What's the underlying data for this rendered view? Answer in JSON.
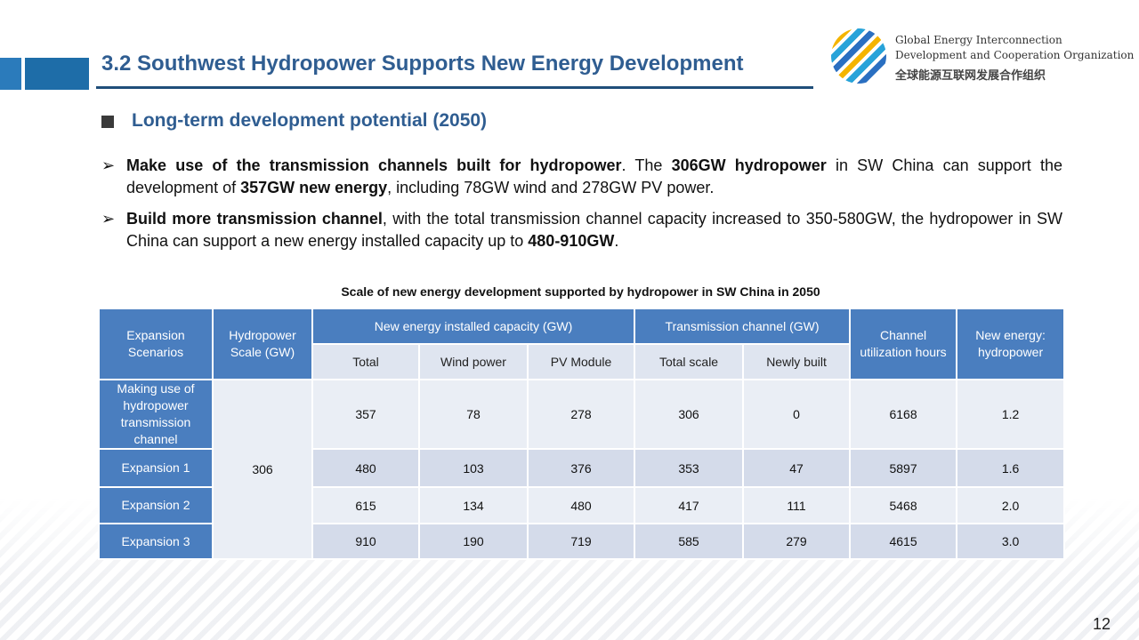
{
  "header": {
    "title": "3.2 Southwest Hydropower Supports New Energy Development",
    "logo": {
      "icon": "globe-logo-icon",
      "en_line1": "Global Energy Interconnection",
      "en_line2": "Development and Cooperation Organization",
      "cn": "全球能源互联网发展合作组织"
    }
  },
  "subtitle": "Long-term development potential (2050)",
  "bullets": [
    {
      "b1": "Make use of the transmission channels built for hydropower",
      "t1": ". The ",
      "b2": "306GW hydropower",
      "t2": " in SW China can support the development of ",
      "b3": "357GW new energy",
      "t3": ", including 78GW wind and 278GW PV power."
    },
    {
      "b1": "Build more transmission channel",
      "t1": ", with the total transmission channel capacity increased to 350-580GW, the hydropower in SW China can support a new energy installed capacity up to ",
      "b2": "480-910GW",
      "t2": "."
    }
  ],
  "table": {
    "caption": "Scale of new energy development supported by hydropower in SW China in 2050",
    "headers": {
      "scenarios": "Expansion Scenarios",
      "hydro_scale": "Hydropower Scale (GW)",
      "new_energy": "New energy installed capacity (GW)",
      "transmission": "Transmission channel (GW)",
      "utilization": "Channel utilization hours",
      "ratio": "New energy: hydropower",
      "total": "Total",
      "wind": "Wind power",
      "pv": "PV Module",
      "total_scale": "Total scale",
      "newly_built": "Newly built"
    },
    "hydro_value": "306",
    "rows": [
      {
        "scenario": "Making use of hydropower transmission channel",
        "total": "357",
        "wind": "78",
        "pv": "278",
        "total_scale": "306",
        "newly_built": "0",
        "hours": "6168",
        "ratio": "1.2"
      },
      {
        "scenario": "Expansion 1",
        "total": "480",
        "wind": "103",
        "pv": "376",
        "total_scale": "353",
        "newly_built": "47",
        "hours": "5897",
        "ratio": "1.6"
      },
      {
        "scenario": "Expansion 2",
        "total": "615",
        "wind": "134",
        "pv": "480",
        "total_scale": "417",
        "newly_built": "111",
        "hours": "5468",
        "ratio": "2.0"
      },
      {
        "scenario": "Expansion 3",
        "total": "910",
        "wind": "190",
        "pv": "719",
        "total_scale": "585",
        "newly_built": "279",
        "hours": "4615",
        "ratio": "3.0"
      }
    ]
  },
  "page_number": "12"
}
